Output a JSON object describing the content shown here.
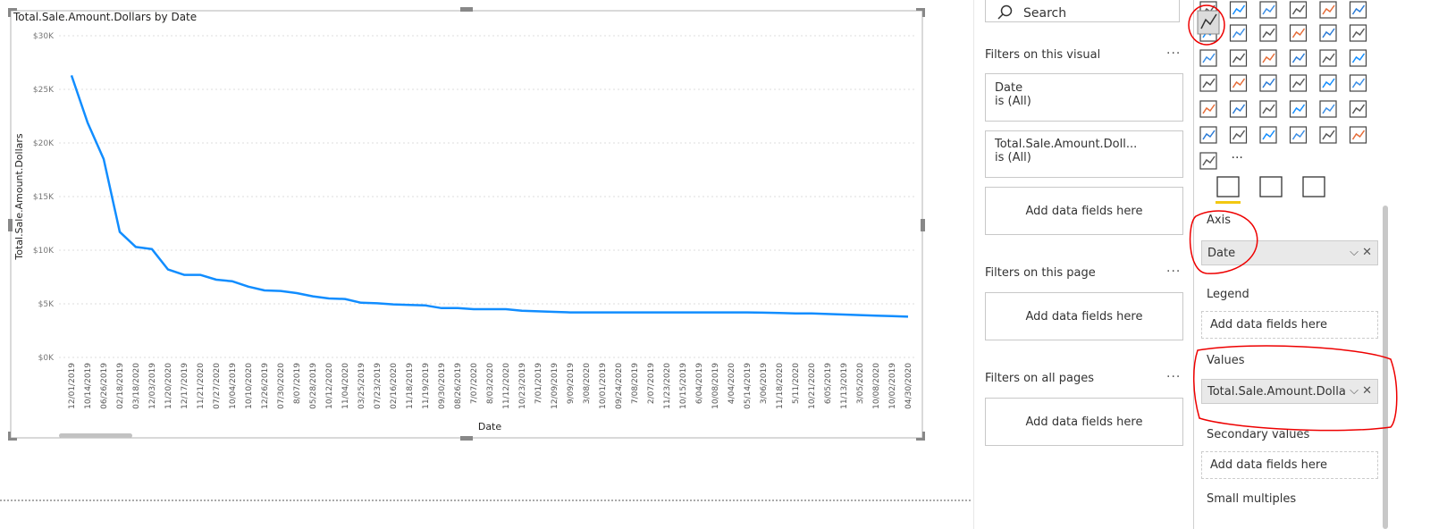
{
  "chart_data": {
    "type": "line",
    "title": "Total.Sale.Amount.Dollars by Date",
    "x_label": "Date",
    "y_label": "Total.Sale.Amount.Dollars",
    "color": "#118DFF",
    "grid": true,
    "categories": [
      "12/01/2019",
      "10/14/2019",
      "06/26/2019",
      "02/18/2019",
      "03/18/2020",
      "12/03/2019",
      "11/20/2020",
      "12/17/2019",
      "11/21/2020",
      "07/27/2020",
      "10/04/2019",
      "10/10/2020",
      "12/26/2019",
      "07/30/2020",
      "8/07/2019",
      "05/28/2019",
      "10/12/2020",
      "11/04/2020",
      "03/25/2019",
      "07/23/2019",
      "02/16/2020",
      "11/18/2019",
      "11/19/2019",
      "09/30/2019",
      "08/26/2019",
      "7/07/2020",
      "8/03/2020",
      "11/12/2020",
      "10/23/2019",
      "7/01/2019",
      "12/09/2019",
      "9/09/2019",
      "3/08/2020",
      "10/01/2019",
      "09/24/2020",
      "7/08/2019",
      "2/07/2019",
      "11/23/2020",
      "10/15/2019",
      "6/04/2019",
      "10/08/2019",
      "4/04/2020",
      "05/14/2019",
      "3/06/2019",
      "11/18/2020",
      "5/11/2020",
      "10/21/2020",
      "6/05/2019",
      "11/13/2019",
      "3/05/2020",
      "10/08/2020",
      "10/02/2019",
      "04/30/2020"
    ],
    "values": [
      26300,
      21900,
      18500,
      11700,
      10300,
      10100,
      8200,
      7700,
      7700,
      7250,
      7100,
      6600,
      6250,
      6200,
      6000,
      5700,
      5500,
      5450,
      5100,
      5050,
      4950,
      4900,
      4850,
      4600,
      4600,
      4500,
      4500,
      4500,
      4350,
      4300,
      4250,
      4200,
      4200,
      4200,
      4200,
      4200,
      4200,
      4200,
      4200,
      4200,
      4200,
      4200,
      4200,
      4180,
      4150,
      4100,
      4100,
      4050,
      4000,
      3950,
      3900,
      3850,
      3800
    ],
    "ylim": [
      0,
      30000
    ],
    "yticks": [
      {
        "value": 0,
        "label": "$0K"
      },
      {
        "value": 5000,
        "label": "$5K"
      },
      {
        "value": 10000,
        "label": "$10K"
      },
      {
        "value": 15000,
        "label": "$15K"
      },
      {
        "value": 20000,
        "label": "$20K"
      },
      {
        "value": 25000,
        "label": "$25K"
      },
      {
        "value": 30000,
        "label": "$30K"
      }
    ]
  },
  "filters_pane": {
    "search": "Search",
    "sections": [
      {
        "heading": "Filters on this visual",
        "cards": [
          {
            "field": "Date",
            "state": "is (All)"
          },
          {
            "field": "Total.Sale.Amount.Doll...",
            "state": "is (All)"
          }
        ],
        "drop": "Add data fields here"
      },
      {
        "heading": "Filters on this page",
        "drop": "Add data fields here"
      },
      {
        "heading": "Filters on all pages",
        "drop": "Add data fields here"
      }
    ]
  },
  "fields_pane": {
    "wells": [
      {
        "label": "Axis",
        "field": "Date"
      },
      {
        "label": "Legend",
        "drop": "Add data fields here"
      },
      {
        "label": "Values",
        "field": "Total.Sale.Amount.Dolla"
      },
      {
        "label": "Secondary values",
        "drop": "Add data fields here"
      },
      {
        "label": "Small multiples"
      }
    ]
  }
}
